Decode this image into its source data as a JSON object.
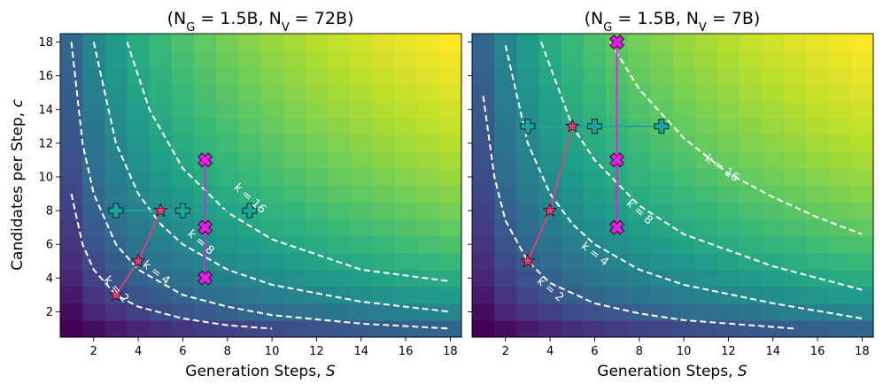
{
  "chart_data": [
    {
      "type": "heatmap",
      "title_main": "(N",
      "title_g_sub": "G",
      "title_mid": " = 1.5B, N",
      "title_v_sub": "V",
      "title_end": " = 72B)",
      "xlabel": "Generation Steps, ",
      "xlabel_var": "S",
      "ylabel": "Candidates per Step, ",
      "ylabel_var": "c",
      "xlim": [
        0.5,
        18.5
      ],
      "ylim": [
        0.5,
        18.5
      ],
      "xticks": [
        "2",
        "4",
        "6",
        "8",
        "10",
        "12",
        "14",
        "16",
        "18"
      ],
      "yticks": [
        "2",
        "4",
        "6",
        "8",
        "10",
        "12",
        "14",
        "16",
        "18"
      ],
      "heatmap": {
        "grid": "1..18 x 1..18",
        "colormap": "viridis",
        "value_increases_with": "S*c"
      },
      "contours": [
        {
          "label": "k = 2",
          "k": 2,
          "points": [
            [
              1,
              9
            ],
            [
              1.5,
              6
            ],
            [
              2,
              4.5
            ],
            [
              3,
              3
            ],
            [
              4,
              2.3
            ],
            [
              6,
              1.6
            ],
            [
              8,
              1.2
            ],
            [
              10,
              1.0
            ]
          ]
        },
        {
          "label": "k = 4",
          "k": 4,
          "points": [
            [
              1,
              18
            ],
            [
              1.5,
              12
            ],
            [
              2,
              9
            ],
            [
              3,
              6
            ],
            [
              4,
              4.5
            ],
            [
              6,
              3
            ],
            [
              8,
              2.3
            ],
            [
              10,
              1.8
            ],
            [
              14,
              1.3
            ],
            [
              18,
              1.0
            ]
          ]
        },
        {
          "label": "k = 8",
          "k": 8,
          "points": [
            [
              2,
              18
            ],
            [
              3,
              12
            ],
            [
              4,
              9
            ],
            [
              5,
              7.2
            ],
            [
              6,
              6
            ],
            [
              8,
              4.5
            ],
            [
              10,
              3.6
            ],
            [
              14,
              2.6
            ],
            [
              18,
              2.0
            ]
          ]
        },
        {
          "label": "k = 16",
          "k": 16,
          "points": [
            [
              3.5,
              18
            ],
            [
              4.5,
              14
            ],
            [
              6,
              10.5
            ],
            [
              8,
              7.9
            ],
            [
              10,
              6.3
            ],
            [
              14,
              4.5
            ],
            [
              18,
              3.8
            ]
          ]
        }
      ],
      "k_labels": [
        {
          "text": "k = 2",
          "x": 3.0,
          "y": 3.3,
          "angle": 48
        },
        {
          "text": "k = 4",
          "x": 4.8,
          "y": 4.3,
          "angle": 38
        },
        {
          "text": "k = 8",
          "x": 6.8,
          "y": 6.1,
          "angle": 42
        },
        {
          "text": "k = 16",
          "x": 9.0,
          "y": 8.7,
          "angle": 42
        }
      ],
      "series": [
        {
          "name": "optimal path",
          "marker": "star",
          "color": "#e0407a",
          "points": [
            [
              3,
              3
            ],
            [
              4,
              5
            ],
            [
              5,
              8
            ]
          ]
        },
        {
          "name": "vary S (c = 8)",
          "marker": "plus",
          "color": "#1aa59a",
          "points": [
            [
              3,
              8
            ],
            [
              6,
              8
            ],
            [
              9,
              8
            ]
          ]
        },
        {
          "name": "vary c (S = 7)",
          "marker": "x",
          "color": "#e020e0",
          "points": [
            [
              7,
              4
            ],
            [
              7,
              7
            ],
            [
              7,
              11
            ]
          ]
        }
      ]
    },
    {
      "type": "heatmap",
      "title_main": "(N",
      "title_g_sub": "G",
      "title_mid": " = 1.5B, N",
      "title_v_sub": "V",
      "title_end": " = 7B)",
      "xlabel": "Generation Steps, ",
      "xlabel_var": "S",
      "xlim": [
        0.5,
        18.5
      ],
      "ylim": [
        0.5,
        18.5
      ],
      "xticks": [
        "2",
        "4",
        "6",
        "8",
        "10",
        "12",
        "14",
        "16",
        "18"
      ],
      "heatmap": {
        "grid": "1..18 x 1..18",
        "colormap": "viridis",
        "value_increases_with": "S*c"
      },
      "contours": [
        {
          "label": "k = 2",
          "k": 2,
          "points": [
            [
              1,
              14.8
            ],
            [
              1.5,
              10
            ],
            [
              2,
              7.4
            ],
            [
              3,
              5
            ],
            [
              4,
              3.7
            ],
            [
              6,
              2.5
            ],
            [
              8,
              1.9
            ],
            [
              10,
              1.5
            ],
            [
              15,
              1.0
            ]
          ]
        },
        {
          "label": "k = 4",
          "k": 4,
          "points": [
            [
              2,
              17.8
            ],
            [
              3,
              12
            ],
            [
              4,
              9
            ],
            [
              5,
              7.2
            ],
            [
              6,
              6
            ],
            [
              8,
              4.5
            ],
            [
              10,
              3.6
            ],
            [
              14,
              2.5
            ],
            [
              18,
              1.6
            ]
          ]
        },
        {
          "label": "k = 8",
          "k": 8,
          "points": [
            [
              3.6,
              18
            ],
            [
              5,
              13
            ],
            [
              6,
              11
            ],
            [
              8,
              8.3
            ],
            [
              10,
              6.6
            ],
            [
              14,
              4.7
            ],
            [
              18,
              3.3
            ]
          ]
        },
        {
          "label": "k = 16",
          "k": 16,
          "points": [
            [
              6.7,
              18
            ],
            [
              8,
              15.2
            ],
            [
              10,
              12.3
            ],
            [
              12,
              10.2
            ],
            [
              14,
              8.8
            ],
            [
              16,
              7.6
            ],
            [
              18,
              6.6
            ]
          ]
        }
      ],
      "k_labels": [
        {
          "text": "k = 2",
          "x": 4.0,
          "y": 3.3,
          "angle": 40
        },
        {
          "text": "k = 4",
          "x": 6.0,
          "y": 5.4,
          "angle": 38
        },
        {
          "text": "k = 8",
          "x": 8.0,
          "y": 7.9,
          "angle": 42
        },
        {
          "text": "k = 16",
          "x": 11.7,
          "y": 10.5,
          "angle": 35
        }
      ],
      "series": [
        {
          "name": "optimal path",
          "marker": "star",
          "color": "#e0407a",
          "points": [
            [
              3,
              5
            ],
            [
              4,
              8
            ],
            [
              5,
              13
            ]
          ]
        },
        {
          "name": "vary S (c = 13)",
          "marker": "plus",
          "color": "#1aa59a",
          "points": [
            [
              3,
              13
            ],
            [
              6,
              13
            ],
            [
              9,
              13
            ]
          ]
        },
        {
          "name": "vary c (S = 7)",
          "marker": "x",
          "color": "#e020e0",
          "points": [
            [
              7,
              7
            ],
            [
              7,
              11
            ],
            [
              7,
              18
            ]
          ]
        }
      ]
    }
  ]
}
